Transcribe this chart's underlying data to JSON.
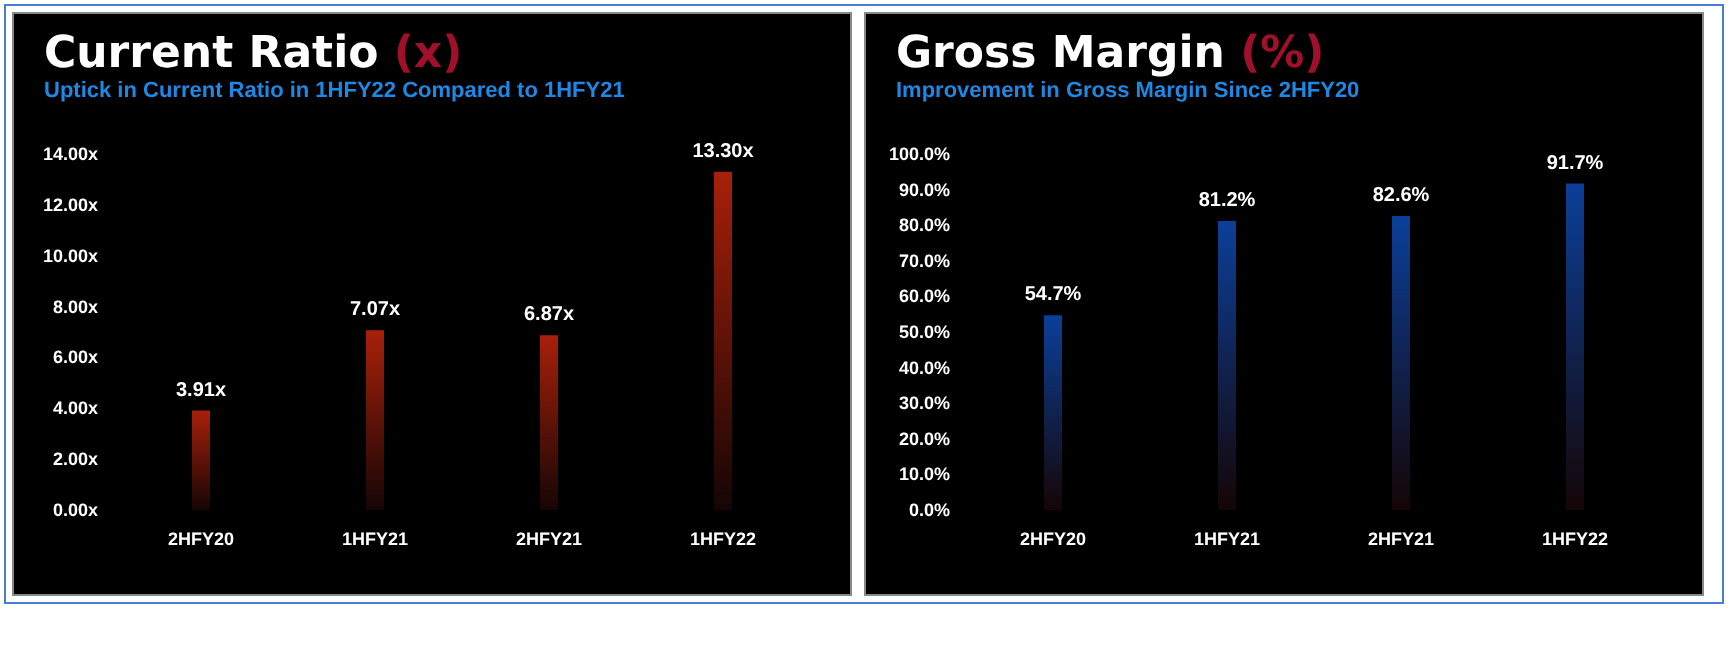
{
  "chart_data": [
    {
      "type": "bar",
      "title": "Current Ratio (x)",
      "subtitle": "Uptick in Current Ratio in 1HFY22 Compared to 1HFY21",
      "categories": [
        "2HFY20",
        "1HFY21",
        "2HFY21",
        "1HFY22"
      ],
      "values": [
        3.91,
        7.07,
        6.87,
        13.3
      ],
      "value_labels": [
        "3.91x",
        "7.07x",
        "6.87x",
        "13.30x"
      ],
      "color": "#a8200a",
      "ylim": [
        0,
        14
      ],
      "yticks": [
        {
          "value": 0,
          "label": "0.00x"
        },
        {
          "value": 2,
          "label": "2.00x"
        },
        {
          "value": 4,
          "label": "4.00x"
        },
        {
          "value": 6,
          "label": "6.00x"
        },
        {
          "value": 8,
          "label": "8.00x"
        },
        {
          "value": 10,
          "label": "10.00x"
        },
        {
          "value": 12,
          "label": "12.00x"
        },
        {
          "value": 14,
          "label": "14.00x"
        }
      ],
      "grid": false
    },
    {
      "type": "bar",
      "title": "Gross Margin (%)",
      "subtitle": "Improvement in Gross Margin Since 2HFY20",
      "categories": [
        "2HFY20",
        "1HFY21",
        "2HFY21",
        "1HFY22"
      ],
      "values": [
        54.7,
        81.2,
        82.6,
        91.7
      ],
      "value_labels": [
        "54.7%",
        "81.2%",
        "82.6%",
        "91.7%"
      ],
      "color": "#0b3f9a",
      "ylim": [
        0,
        100
      ],
      "yticks": [
        {
          "value": 0,
          "label": "0.0%"
        },
        {
          "value": 10,
          "label": "10.0%"
        },
        {
          "value": 20,
          "label": "20.0%"
        },
        {
          "value": 30,
          "label": "30.0%"
        },
        {
          "value": 40,
          "label": "40.0%"
        },
        {
          "value": 50,
          "label": "50.0%"
        },
        {
          "value": 60,
          "label": "60.0%"
        },
        {
          "value": 70,
          "label": "70.0%"
        },
        {
          "value": 80,
          "label": "80.0%"
        },
        {
          "value": 90,
          "label": "90.0%"
        },
        {
          "value": 100,
          "label": "100.0%"
        }
      ],
      "grid": false
    }
  ]
}
